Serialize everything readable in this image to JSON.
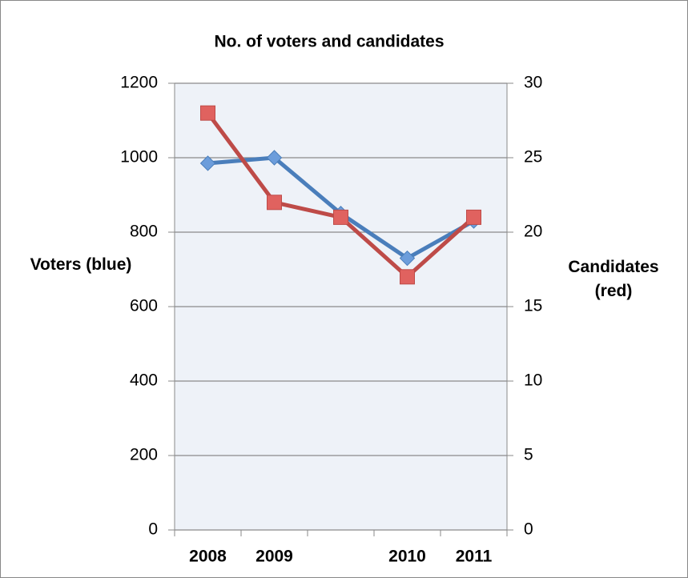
{
  "chart_data": {
    "type": "line",
    "title": "No. of voters and candidates",
    "ylabel": "Voters (blue)",
    "y2label": "Candidates (red)",
    "categories": [
      "2008",
      "2009",
      null,
      "2010",
      "2011"
    ],
    "series": [
      {
        "name": "Voters",
        "color": "#4a7ebb",
        "marker": "diamond",
        "values": [
          985,
          1000,
          850,
          730,
          830
        ]
      },
      {
        "name": "Candidates",
        "color": "#be4b48",
        "marker": "square",
        "axis": "y2",
        "values": [
          28,
          22,
          21,
          17,
          21
        ]
      }
    ],
    "ylim": [
      0,
      1200
    ],
    "yticks": [
      0,
      200,
      400,
      600,
      800,
      1000,
      1200
    ],
    "y2lim": [
      0,
      30
    ],
    "y2ticks": [
      0,
      5,
      10,
      15,
      20,
      25,
      30
    ],
    "grid": true,
    "legend": false
  }
}
